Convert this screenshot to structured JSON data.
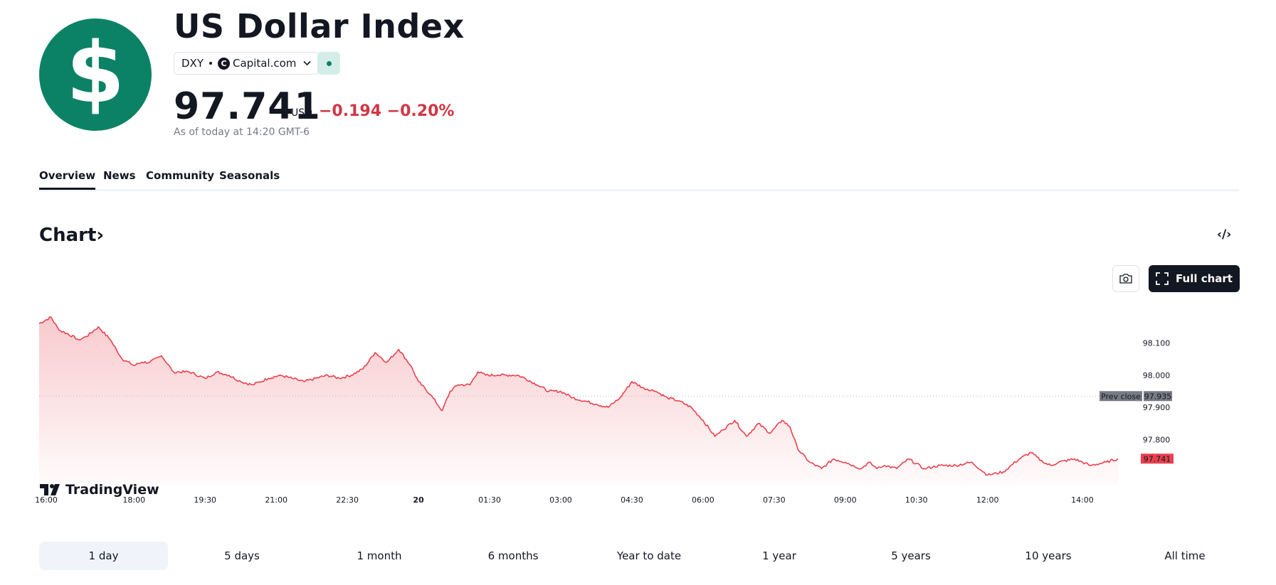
{
  "header": {
    "logo_symbol": "$",
    "title": "US Dollar Index",
    "symbol": "DXY",
    "exchange_icon": "C",
    "exchange": "Capital.com",
    "price": "97.741",
    "currency": "USD",
    "change": "−0.194 −0.20%",
    "as_of": "As of today at 14:20 GMT-6",
    "colors": {
      "brand": "#0b8266",
      "down": "#d13545"
    }
  },
  "tabs": [
    "Overview",
    "News",
    "Community",
    "Seasonals"
  ],
  "chart_section": {
    "heading": "Chart",
    "heading_arrow": "›",
    "embed_icon": "‹/›",
    "full_chart_label": "Full chart",
    "watermark": "TradingView"
  },
  "chart_data": {
    "type": "area",
    "symbol": "DXY",
    "interval": "1 day",
    "x_unit": "minutes since 16:00 (prev day)",
    "ylim": [
      97.66,
      98.22
    ],
    "y_ticks": [
      98.1,
      98.0,
      97.9,
      97.8
    ],
    "y_tick_labels": [
      "98.100",
      "98.000",
      "97.900",
      "97.800"
    ],
    "x_ticks": [
      0,
      120,
      210,
      300,
      390,
      480,
      570,
      660,
      750,
      840,
      930,
      1020,
      1110,
      1200,
      1320
    ],
    "x_tick_labels": [
      "16:00",
      "18:00",
      "19:30",
      "21:00",
      "22:30",
      "20",
      "01:30",
      "03:00",
      "04:30",
      "06:00",
      "07:30",
      "09:00",
      "10:30",
      "12:00",
      "14:00"
    ],
    "xlim": [
      0,
      1420
    ],
    "prev_close": 97.935,
    "prev_close_label": "Prev close",
    "prev_close_value_label": "97.935",
    "last_value": 97.741,
    "last_value_label": "97.741",
    "color": "#e8414e",
    "series": [
      {
        "name": "DXY",
        "x": [
          0,
          15,
          25,
          35,
          50,
          60,
          75,
          90,
          105,
          120,
          130,
          140,
          155,
          170,
          190,
          210,
          225,
          240,
          255,
          270,
          290,
          305,
          320,
          335,
          350,
          365,
          380,
          395,
          410,
          425,
          440,
          455,
          470,
          480,
          495,
          510,
          520,
          530,
          545,
          555,
          565,
          580,
          595,
          605,
          615,
          630,
          645,
          660,
          675,
          690,
          705,
          720,
          735,
          750,
          765,
          780,
          795,
          810,
          825,
          840,
          855,
          865,
          880,
          895,
          910,
          925,
          940,
          950,
          960,
          975,
          990,
          1005,
          1020,
          1030,
          1040,
          1050,
          1060,
          1070,
          1085,
          1100,
          1120,
          1140,
          1160,
          1180,
          1200,
          1220,
          1240,
          1255,
          1270,
          1280,
          1290,
          1310,
          1330,
          1350,
          1365
        ],
        "y": [
          98.16,
          98.18,
          98.14,
          98.13,
          98.11,
          98.12,
          98.15,
          98.11,
          98.05,
          98.03,
          98.04,
          98.04,
          98.06,
          98.01,
          98.01,
          97.99,
          98.01,
          98.0,
          97.98,
          97.97,
          97.99,
          98.0,
          97.99,
          97.98,
          97.99,
          98.0,
          97.99,
          98.0,
          98.02,
          98.07,
          98.04,
          98.08,
          98.03,
          97.98,
          97.94,
          97.89,
          97.95,
          97.97,
          97.97,
          98.01,
          98.0,
          98.0,
          98.0,
          98.0,
          97.99,
          97.97,
          97.95,
          97.95,
          97.93,
          97.92,
          97.91,
          97.9,
          97.93,
          97.98,
          97.96,
          97.95,
          97.93,
          97.92,
          97.9,
          97.86,
          97.81,
          97.83,
          97.86,
          97.81,
          97.85,
          97.82,
          97.86,
          97.84,
          97.77,
          97.73,
          97.71,
          97.74,
          97.73,
          97.72,
          97.71,
          97.73,
          97.71,
          97.72,
          97.71,
          97.74,
          97.71,
          97.72,
          97.72,
          97.73,
          97.69,
          97.7,
          97.74,
          97.76,
          97.73,
          97.72,
          97.73,
          97.74,
          97.72,
          97.73,
          97.741
        ]
      }
    ]
  },
  "time_ranges": {
    "active_index": 0,
    "items": [
      "1 day",
      "5 days",
      "1 month",
      "6 months",
      "Year to date",
      "1 year",
      "5 years",
      "10 years",
      "All time"
    ]
  }
}
